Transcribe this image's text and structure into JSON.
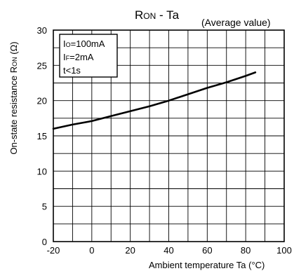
{
  "chart_data": {
    "type": "line",
    "title_main": "R",
    "title_sub": "ON",
    "title_rest": " - Ta",
    "subtitle": "(Average value)",
    "xlabel": "Ambient temperature Ta (°C)",
    "ylabel_main": "On-state resistance R",
    "ylabel_sub": "ON",
    "ylabel_unit": " (Ω)",
    "xlim": [
      -20,
      100
    ],
    "ylim": [
      0,
      30
    ],
    "x_ticks": [
      "-20",
      "0",
      "20",
      "40",
      "60",
      "80",
      "100"
    ],
    "y_ticks": [
      "0",
      "5",
      "10",
      "15",
      "20",
      "25",
      "30"
    ],
    "x_minor_step": 10,
    "y_minor_step": 2.5,
    "grid": true,
    "conditions": [
      {
        "main": "I",
        "sub": "O",
        "rest": "=100mA"
      },
      {
        "main": "I",
        "sub": "F",
        "rest": "=2mA"
      },
      {
        "main": "t<1s",
        "sub": "",
        "rest": ""
      }
    ],
    "series": [
      {
        "x": [
          -20,
          -10,
          0,
          10,
          20,
          30,
          40,
          50,
          60,
          70,
          80,
          85
        ],
        "y": [
          16.0,
          16.6,
          17.1,
          17.8,
          18.5,
          19.2,
          20.0,
          20.9,
          21.8,
          22.6,
          23.5,
          24.0
        ]
      }
    ],
    "line_color": "#000000",
    "grid_color": "#000000"
  }
}
